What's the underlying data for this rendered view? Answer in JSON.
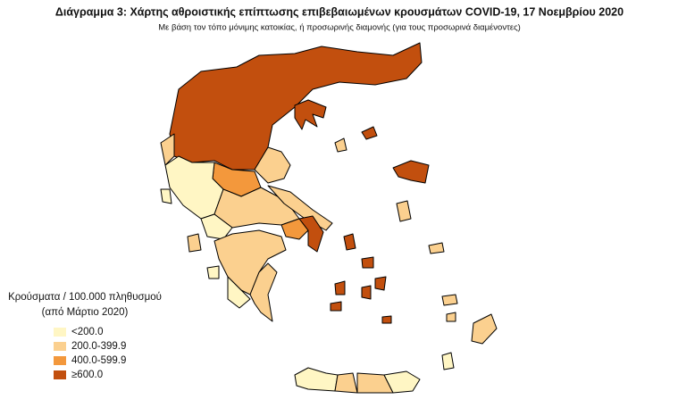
{
  "title": "Διάγραμμα 3: Χάρτης αθροιστικής επίπτωσης επιβεβαιωμένων κρουσμάτων COVID-19, 17 Νοεμβρίου 2020",
  "subtitle": "Με βάση τον τόπο μόνιμης κατοικίας, ή προσωρινής διαμονής (για τους προσωρινά διαμένοντες)",
  "legend": {
    "title": "Κρούσματα / 100.000 πληθυσμού",
    "subtitle": "(από Μάρτιο 2020)",
    "items": [
      {
        "label": "<200.0",
        "color": "#fff6c4"
      },
      {
        "label": "200.0-399.9",
        "color": "#fbd08f"
      },
      {
        "label": "400.0-599.9",
        "color": "#f3983c"
      },
      {
        "label": "≥600.0",
        "color": "#c24f0e"
      }
    ]
  }
}
